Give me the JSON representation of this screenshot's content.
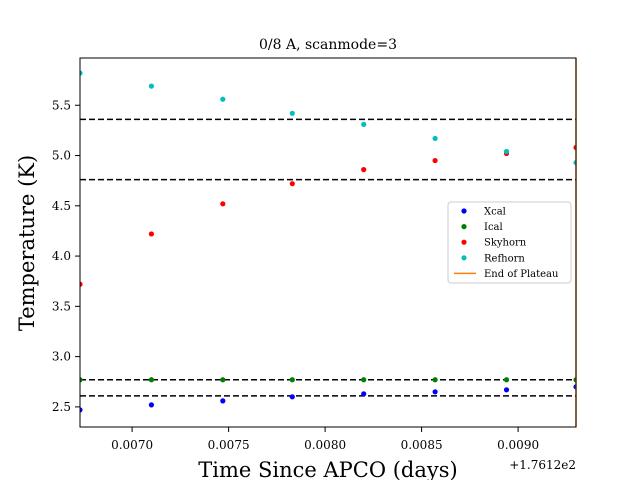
{
  "chart_data": {
    "type": "scatter",
    "title": "0/8 A, scanmode=3",
    "xlabel": "Time Since APCO (days)",
    "ylabel": "Temperature (K)",
    "x_offset_label": "+1.7612e2",
    "xlim": [
      0.00673,
      0.0093
    ],
    "ylim": [
      2.3,
      5.97
    ],
    "x_ticks": [
      {
        "value": 0.007,
        "label": "0.0070"
      },
      {
        "value": 0.0075,
        "label": "0.0075"
      },
      {
        "value": 0.008,
        "label": "0.0080"
      },
      {
        "value": 0.0085,
        "label": "0.0085"
      },
      {
        "value": 0.009,
        "label": "0.0090"
      }
    ],
    "y_ticks": [
      {
        "value": 2.5,
        "label": "2.5"
      },
      {
        "value": 3.0,
        "label": "3.0"
      },
      {
        "value": 3.5,
        "label": "3.5"
      },
      {
        "value": 4.0,
        "label": "4.0"
      },
      {
        "value": 4.5,
        "label": "4.5"
      },
      {
        "value": 5.0,
        "label": "5.0"
      },
      {
        "value": 5.5,
        "label": "5.5"
      }
    ],
    "x": [
      0.00673,
      0.0071,
      0.00747,
      0.00783,
      0.0082,
      0.00857,
      0.00894,
      0.0093
    ],
    "series": [
      {
        "name": "Xcal",
        "color": "#0000ff",
        "values": [
          2.47,
          2.52,
          2.56,
          2.6,
          2.63,
          2.65,
          2.67,
          2.7
        ]
      },
      {
        "name": "Ical",
        "color": "#008000",
        "values": [
          2.77,
          2.77,
          2.77,
          2.77,
          2.77,
          2.77,
          2.77,
          2.77
        ]
      },
      {
        "name": "Skyhorn",
        "color": "#ff0000",
        "values": [
          3.72,
          4.22,
          4.52,
          4.72,
          4.86,
          4.95,
          5.02,
          5.08
        ]
      },
      {
        "name": "Refhorn",
        "color": "#00bfbf",
        "values": [
          5.82,
          5.69,
          5.56,
          5.42,
          5.31,
          5.17,
          5.04,
          4.93
        ]
      }
    ],
    "hlines": [
      5.36,
      4.76,
      2.77,
      2.61
    ],
    "vline": {
      "name": "End of Plateau",
      "x": 0.0093,
      "color": "#ff7f0e"
    },
    "legend_position": "center-right"
  }
}
